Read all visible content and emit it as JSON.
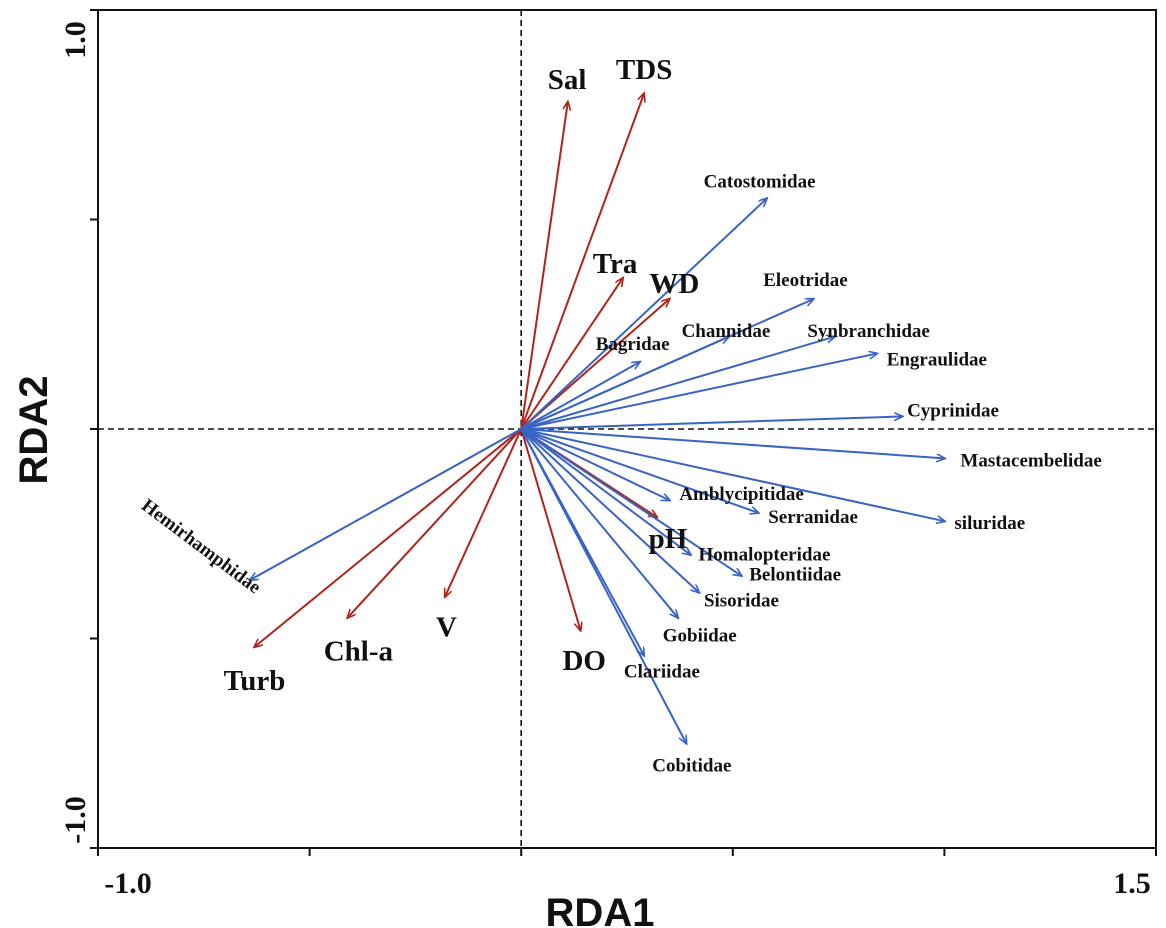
{
  "chart_data": {
    "type": "scatter",
    "subtype": "rda-biplot",
    "xlabel": "RDA1",
    "ylabel": "RDA2",
    "xlim": [
      -1.0,
      1.5
    ],
    "ylim": [
      -1.0,
      1.0
    ],
    "x_tick_labels": [
      "-1.0",
      "1.5"
    ],
    "y_tick_labels": [
      "1.0",
      "-1.0"
    ],
    "x_ticks": [
      -1.0,
      -0.5,
      0.0,
      0.5,
      1.0,
      1.5
    ],
    "y_ticks": [
      -1.0,
      -0.5,
      0.0,
      0.5,
      1.0
    ],
    "origin_lines": "dashed",
    "grid": false,
    "colors": {
      "environment": "#b0241c",
      "species": "#3a64c4"
    },
    "environment_vectors": [
      {
        "label": "Sal",
        "x": 0.11,
        "y": 0.78
      },
      {
        "label": "TDS",
        "x": 0.29,
        "y": 0.8
      },
      {
        "label": "Tra",
        "x": 0.24,
        "y": 0.36
      },
      {
        "label": "WD",
        "x": 0.35,
        "y": 0.31
      },
      {
        "label": "pH",
        "x": 0.32,
        "y": -0.21
      },
      {
        "label": "DO",
        "x": 0.14,
        "y": -0.48
      },
      {
        "label": "V",
        "x": -0.18,
        "y": -0.4
      },
      {
        "label": "Chl-a",
        "x": -0.41,
        "y": -0.45
      },
      {
        "label": "Turb",
        "x": -0.63,
        "y": -0.52
      }
    ],
    "species_vectors": [
      {
        "label": "Catostomidae",
        "x": 0.58,
        "y": 0.55
      },
      {
        "label": "Eleotridae",
        "x": 0.69,
        "y": 0.31
      },
      {
        "label": "Channidae",
        "x": 0.49,
        "y": 0.22
      },
      {
        "label": "Synbranchidae",
        "x": 0.74,
        "y": 0.22
      },
      {
        "label": "Engraulidae",
        "x": 0.84,
        "y": 0.18
      },
      {
        "label": "Bagridae",
        "x": 0.28,
        "y": 0.16
      },
      {
        "label": "Cyprinidae",
        "x": 0.9,
        "y": 0.03
      },
      {
        "label": "Mastacembelidae",
        "x": 1.0,
        "y": -0.07
      },
      {
        "label": "Amblycipitidae",
        "x": 0.35,
        "y": -0.17
      },
      {
        "label": "Serranidae",
        "x": 0.56,
        "y": -0.2
      },
      {
        "label": "siluridae",
        "x": 1.0,
        "y": -0.22
      },
      {
        "label": "Homalopteridae",
        "x": 0.4,
        "y": -0.3
      },
      {
        "label": "Belontiidae",
        "x": 0.52,
        "y": -0.35
      },
      {
        "label": "Sisoridae",
        "x": 0.42,
        "y": -0.39
      },
      {
        "label": "Gobiidae",
        "x": 0.37,
        "y": -0.45
      },
      {
        "label": "Clariidae",
        "x": 0.29,
        "y": -0.54
      },
      {
        "label": "Cobitidae",
        "x": 0.39,
        "y": -0.75
      },
      {
        "label": "Hemirhamphidae",
        "x": -0.64,
        "y": -0.36
      }
    ]
  }
}
